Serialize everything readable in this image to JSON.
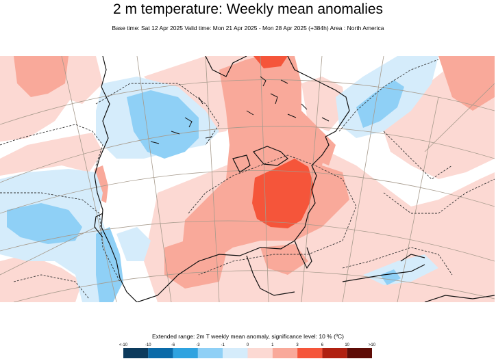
{
  "title": "2 m temperature: Weekly mean anomalies",
  "subtitle": "Base time: Sat 12 Apr 2025 Valid time: Mon 21 Apr 2025 - Mon 28 Apr 2025 (+384h) Area : North America",
  "legend": {
    "title": "Extended range: 2m T weekly mean anomaly, significance level: 10 % (ºC)",
    "ticks": [
      "<-10",
      "-10",
      "-6",
      "-3",
      "-1",
      "0",
      "1",
      "3",
      "6",
      "10",
      ">10"
    ],
    "colors": [
      "#0c3a5c",
      "#0a6aa8",
      "#2fa3e0",
      "#8fd0f6",
      "#d5ecfb",
      "#fcd9d3",
      "#f9a99a",
      "#f5553a",
      "#b02010",
      "#5e0c06"
    ]
  },
  "map": {
    "colors": {
      "ocean": "#ffffff",
      "warm_light": "#fcd9d3",
      "warm_mid": "#f9a99a",
      "warm_strong": "#f5553a",
      "cool_light": "#d5ecfb",
      "cool_mid": "#8fd0f6",
      "coast": "#111111",
      "graticule": "#a69a8c"
    }
  }
}
